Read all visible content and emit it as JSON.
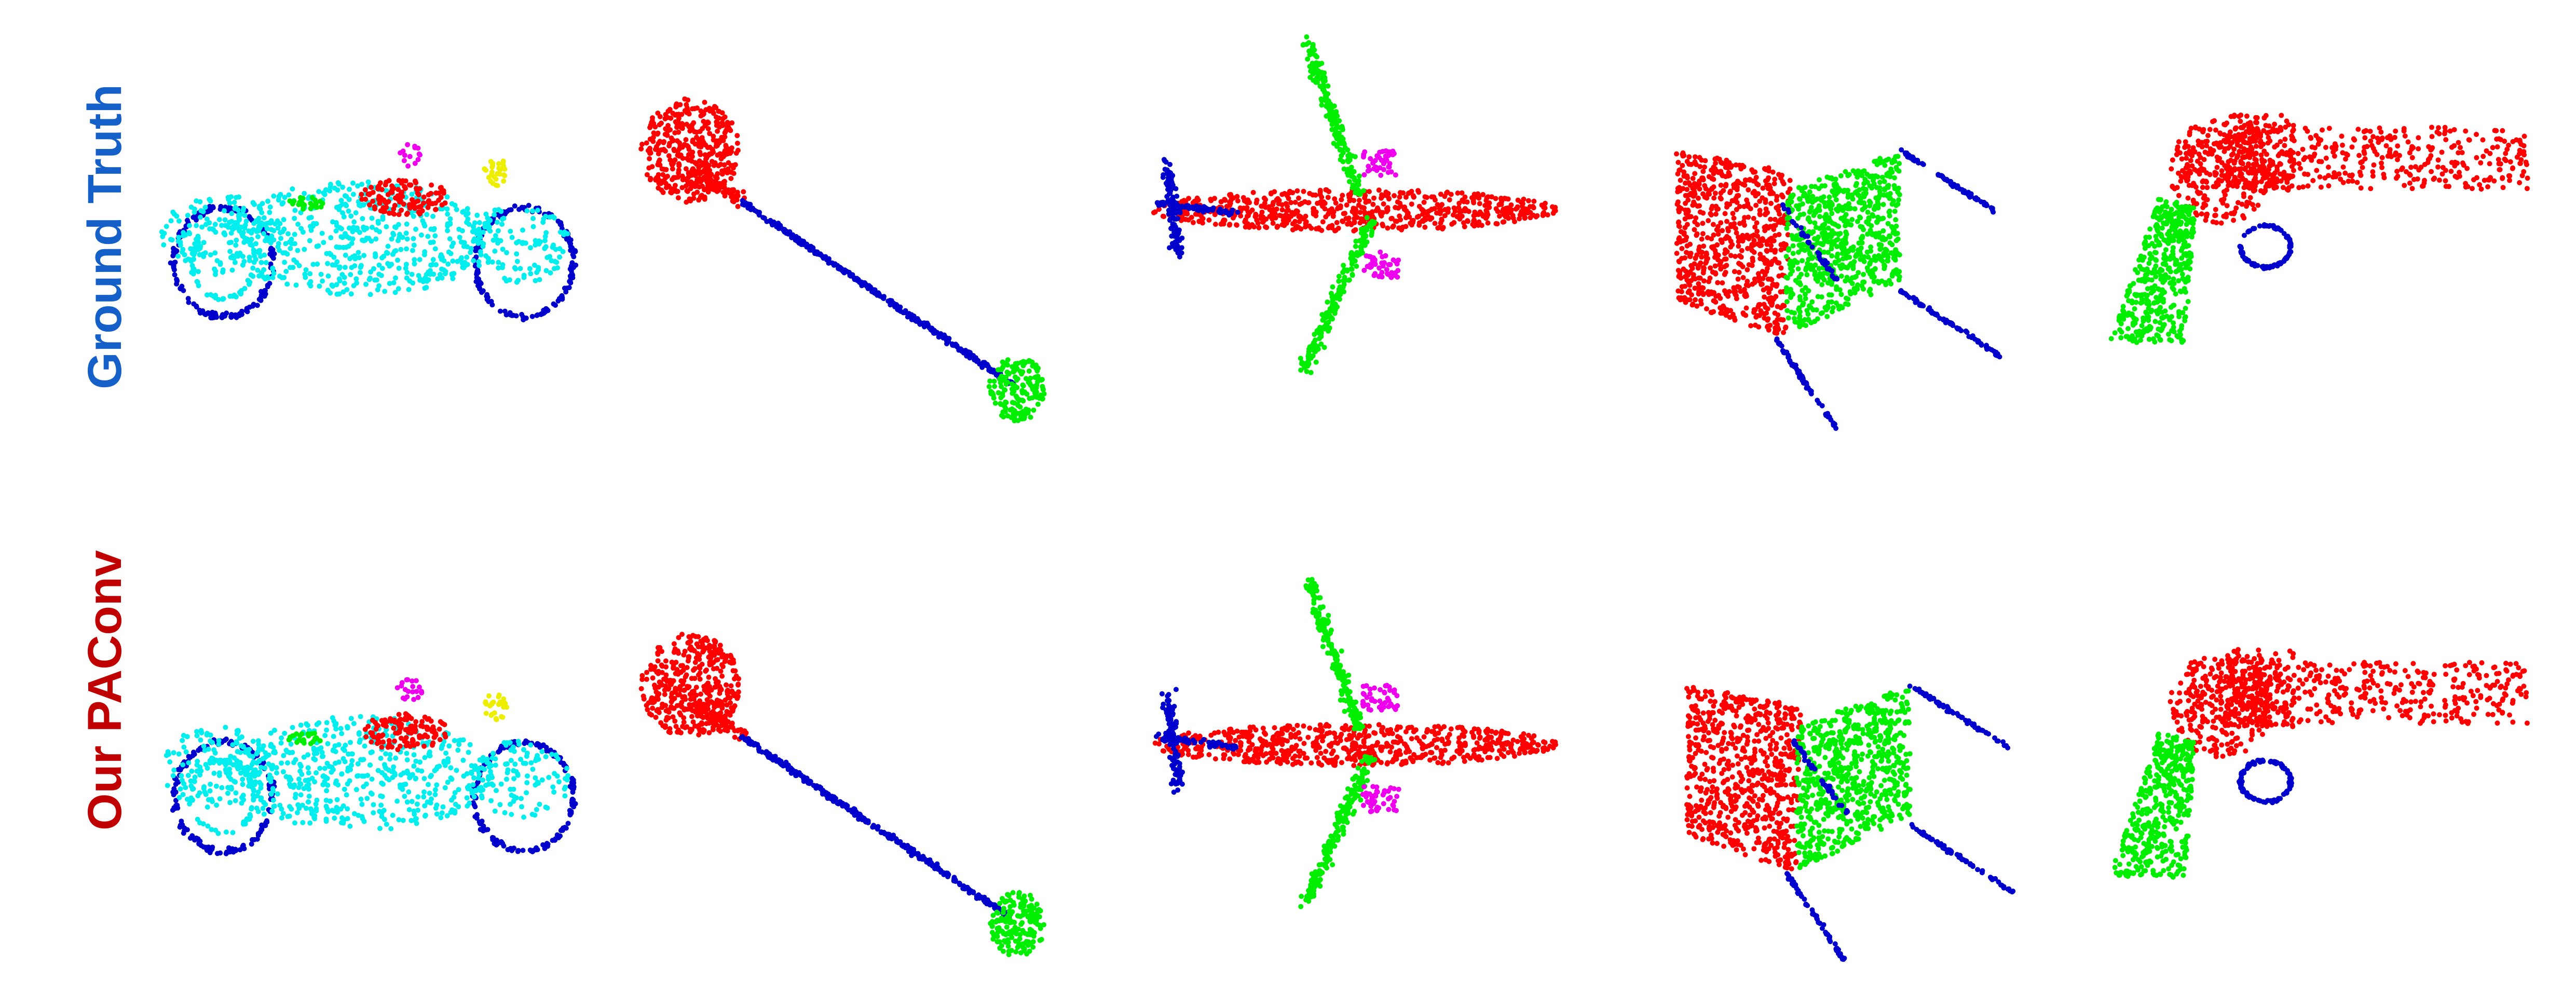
{
  "rows": [
    {
      "label": "Ground Truth",
      "color": "#1560c8"
    },
    {
      "label": "Our PAConv",
      "color": "#c00000"
    }
  ],
  "part_colors": {
    "red": "#ff0000",
    "green": "#00ee00",
    "blue": "#0000cc",
    "cyan": "#00eeee",
    "magenta": "#ee00ee",
    "yellow": "#eeee00"
  },
  "objects": [
    "motorbike",
    "guitar",
    "airplane",
    "chair",
    "pistol"
  ]
}
